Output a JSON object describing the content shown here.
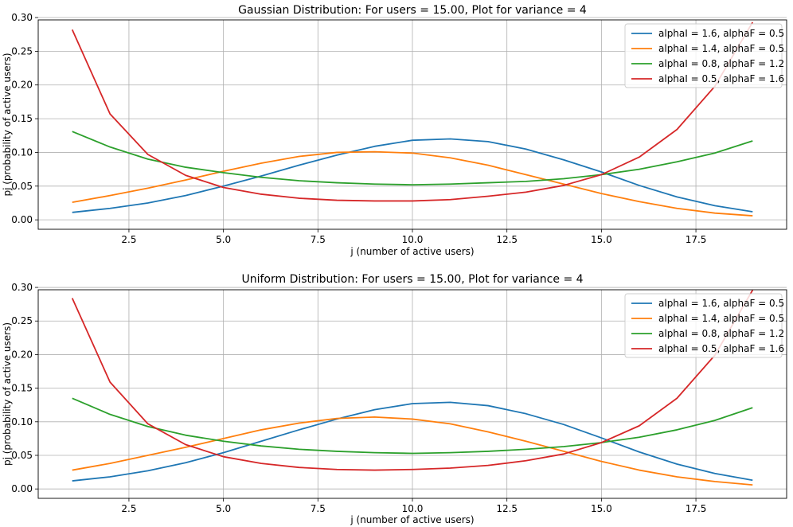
{
  "chart_data": [
    {
      "type": "line",
      "title": "Gaussian Distribution: For users = 15.00, Plot for variance = 4",
      "xlabel": "j (number of active users)",
      "ylabel": "pj (probability of active users)",
      "xlim": [
        0.1,
        19.9
      ],
      "ylim": [
        -0.014,
        0.2965
      ],
      "xticks": [
        2.5,
        5.0,
        7.5,
        10.0,
        12.5,
        15.0,
        17.5
      ],
      "xtick_labels": [
        "2.5",
        "5.0",
        "7.5",
        "10.0",
        "12.5",
        "15.0",
        "17.5"
      ],
      "yticks": [
        0.0,
        0.05,
        0.1,
        0.15,
        0.2,
        0.25,
        0.3
      ],
      "ytick_labels": [
        "0.00",
        "0.05",
        "0.10",
        "0.15",
        "0.20",
        "0.25",
        "0.30"
      ],
      "grid": true,
      "legend_position": "top-right",
      "x": [
        1,
        2,
        3,
        4,
        5,
        6,
        7,
        8,
        9,
        10,
        11,
        12,
        13,
        14,
        15,
        16,
        17,
        18,
        19
      ],
      "series": [
        {
          "name": "alphaI = 1.6, alphaF = 0.5",
          "color": "#1f77b4",
          "values": [
            0.011,
            0.017,
            0.025,
            0.036,
            0.05,
            0.065,
            0.081,
            0.096,
            0.109,
            0.118,
            0.12,
            0.116,
            0.105,
            0.089,
            0.071,
            0.051,
            0.034,
            0.021,
            0.012
          ]
        },
        {
          "name": "alphaI = 1.4, alphaF = 0.5",
          "color": "#ff7f0e",
          "values": [
            0.026,
            0.036,
            0.047,
            0.059,
            0.072,
            0.084,
            0.094,
            0.1,
            0.101,
            0.099,
            0.092,
            0.081,
            0.067,
            0.053,
            0.039,
            0.027,
            0.017,
            0.01,
            0.006
          ]
        },
        {
          "name": "alphaI = 0.8, alphaF = 1.2",
          "color": "#2ca02c",
          "values": [
            0.131,
            0.108,
            0.09,
            0.078,
            0.07,
            0.063,
            0.058,
            0.055,
            0.053,
            0.052,
            0.053,
            0.055,
            0.057,
            0.061,
            0.067,
            0.075,
            0.086,
            0.099,
            0.117
          ]
        },
        {
          "name": "alphaI = 0.5, alphaF = 1.6",
          "color": "#d62728",
          "values": [
            0.282,
            0.157,
            0.097,
            0.066,
            0.048,
            0.038,
            0.032,
            0.029,
            0.028,
            0.028,
            0.03,
            0.035,
            0.041,
            0.051,
            0.067,
            0.093,
            0.134,
            0.198,
            0.293
          ]
        }
      ]
    },
    {
      "type": "line",
      "title": "Uniform Distribution: For users = 15.00, Plot for variance = 4",
      "xlabel": "j (number of active users)",
      "ylabel": "pj (probability of active users)",
      "xlim": [
        0.1,
        19.9
      ],
      "ylim": [
        -0.014,
        0.2965
      ],
      "xticks": [
        2.5,
        5.0,
        7.5,
        10.0,
        12.5,
        15.0,
        17.5
      ],
      "xtick_labels": [
        "2.5",
        "5.0",
        "7.5",
        "10.0",
        "12.5",
        "15.0",
        "17.5"
      ],
      "yticks": [
        0.0,
        0.05,
        0.1,
        0.15,
        0.2,
        0.25,
        0.3
      ],
      "ytick_labels": [
        "0.00",
        "0.05",
        "0.10",
        "0.15",
        "0.20",
        "0.25",
        "0.30"
      ],
      "grid": true,
      "legend_position": "top-right",
      "x": [
        1,
        2,
        3,
        4,
        5,
        6,
        7,
        8,
        9,
        10,
        11,
        12,
        13,
        14,
        15,
        16,
        17,
        18,
        19
      ],
      "series": [
        {
          "name": "alphaI = 1.6, alphaF = 0.5",
          "color": "#1f77b4",
          "values": [
            0.012,
            0.018,
            0.027,
            0.039,
            0.054,
            0.071,
            0.088,
            0.104,
            0.118,
            0.127,
            0.129,
            0.124,
            0.112,
            0.096,
            0.076,
            0.055,
            0.037,
            0.023,
            0.013
          ]
        },
        {
          "name": "alphaI = 1.4, alphaF = 0.5",
          "color": "#ff7f0e",
          "values": [
            0.028,
            0.038,
            0.05,
            0.062,
            0.075,
            0.088,
            0.098,
            0.105,
            0.107,
            0.104,
            0.097,
            0.085,
            0.071,
            0.056,
            0.041,
            0.028,
            0.018,
            0.011,
            0.006
          ]
        },
        {
          "name": "alphaI = 0.8, alphaF = 1.2",
          "color": "#2ca02c",
          "values": [
            0.135,
            0.111,
            0.093,
            0.08,
            0.071,
            0.064,
            0.059,
            0.056,
            0.054,
            0.053,
            0.054,
            0.056,
            0.059,
            0.063,
            0.069,
            0.077,
            0.088,
            0.102,
            0.121
          ]
        },
        {
          "name": "alphaI = 0.5, alphaF = 1.6",
          "color": "#d62728",
          "values": [
            0.284,
            0.159,
            0.097,
            0.066,
            0.048,
            0.038,
            0.032,
            0.029,
            0.028,
            0.029,
            0.031,
            0.035,
            0.042,
            0.052,
            0.069,
            0.094,
            0.135,
            0.199,
            0.296
          ]
        }
      ]
    }
  ]
}
